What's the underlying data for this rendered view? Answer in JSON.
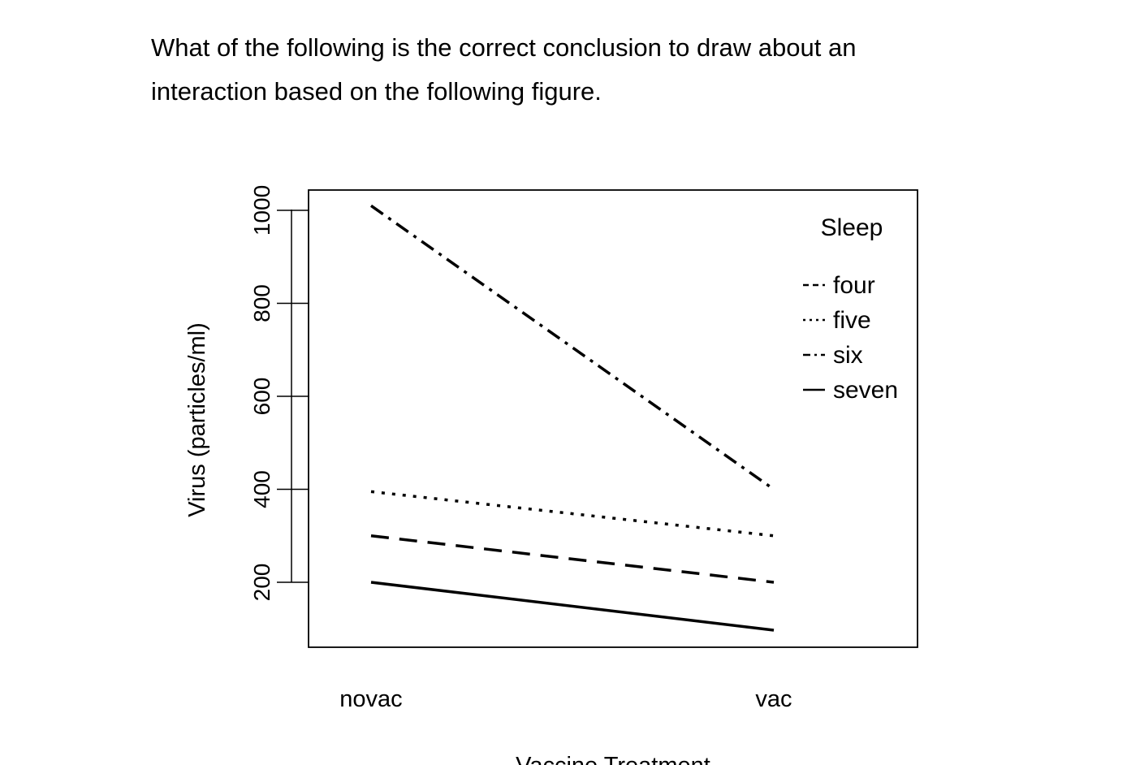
{
  "question": {
    "text": "What of the following is the correct conclusion to draw about an interaction based on the following figure."
  },
  "chart_data": {
    "type": "line",
    "title": "",
    "xlabel": "Vaccine Treatment",
    "ylabel": "Virus (particles/ml)",
    "categories": [
      "novac",
      "vac"
    ],
    "yticks": [
      200,
      400,
      600,
      800,
      1000
    ],
    "ylim": [
      62,
      1040
    ],
    "grid": false,
    "legend": {
      "title": "Sleep",
      "placement": "top-right"
    },
    "series": [
      {
        "name": "four",
        "values": [
          300,
          200
        ],
        "linestyle": "dashed"
      },
      {
        "name": "five",
        "values": [
          395,
          300
        ],
        "linestyle": "dotted"
      },
      {
        "name": "six",
        "values": [
          1010,
          400
        ],
        "linestyle": "dashdot"
      },
      {
        "name": "seven",
        "values": [
          200,
          97
        ],
        "linestyle": "solid"
      }
    ],
    "line_color": "#000000"
  }
}
